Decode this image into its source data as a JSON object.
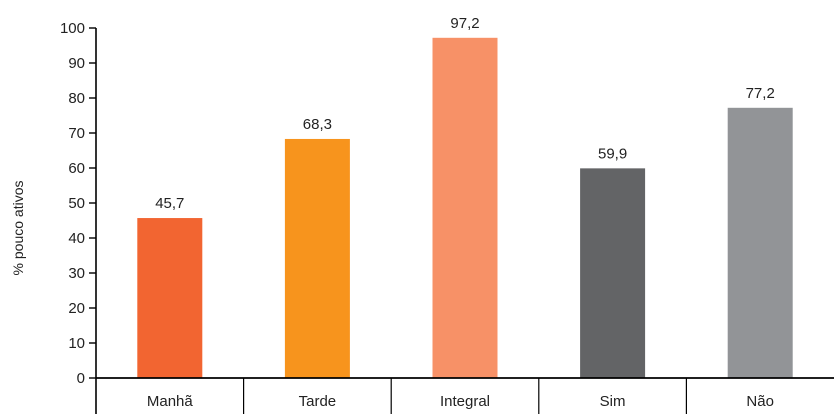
{
  "chart_data": {
    "type": "bar",
    "title": "",
    "xlabel": "",
    "ylabel": "% pouco ativos",
    "ylim": [
      0,
      100
    ],
    "yticks": [
      0,
      10,
      20,
      30,
      40,
      50,
      60,
      70,
      80,
      90,
      100
    ],
    "grid": false,
    "categories": [
      "Manhã",
      "Tarde",
      "Integral",
      "Sim",
      "Não"
    ],
    "values": [
      45.7,
      68.3,
      97.2,
      59.9,
      77.2
    ],
    "value_labels": [
      "45,7",
      "68,3",
      "97,2",
      "59,9",
      "77,2"
    ],
    "colors": [
      "#f26531",
      "#f7941d",
      "#f79167",
      "#636466",
      "#929497"
    ]
  }
}
